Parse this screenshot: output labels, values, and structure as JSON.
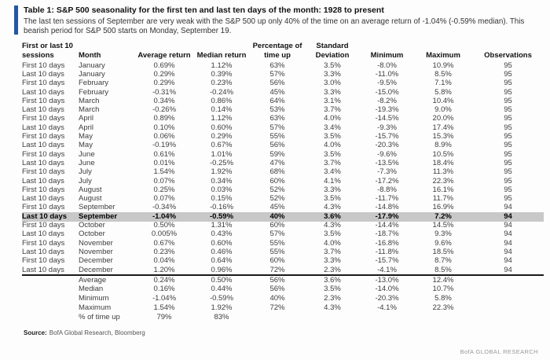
{
  "header": {
    "title": "Table 1: S&P 500 seasonality for the first ten and last ten days of the month: 1928 to present",
    "subtitle": "The last ten sessions of September are very weak with the S&P 500 up only 40% of the time on an average return of -1.04% (-0.59% median). This bearish period for S&P 500 starts on Monday, September 19.",
    "accent_color": "#2257a9"
  },
  "table": {
    "headers": [
      {
        "top": "First or last 10",
        "bottom": "sessions"
      },
      {
        "top": "",
        "bottom": "Month"
      },
      {
        "top": "",
        "bottom": "Average return"
      },
      {
        "top": "",
        "bottom": "Median return"
      },
      {
        "top": "Percentage of",
        "bottom": "time up"
      },
      {
        "top": "Standard",
        "bottom": "Deviation"
      },
      {
        "top": "",
        "bottom": "Minimum"
      },
      {
        "top": "",
        "bottom": "Maximum"
      },
      {
        "top": "",
        "bottom": "Observations"
      }
    ],
    "highlight_row_index": 17,
    "highlight_color": "#c8c8c8",
    "rows": [
      [
        "First 10 days",
        "January",
        "0.69%",
        "1.12%",
        "63%",
        "3.5%",
        "-8.0%",
        "10.9%",
        "95"
      ],
      [
        "Last 10 days",
        "January",
        "0.29%",
        "0.39%",
        "57%",
        "3.3%",
        "-11.0%",
        "8.5%",
        "95"
      ],
      [
        "First 10 days",
        "February",
        "0.29%",
        "0.23%",
        "56%",
        "3.0%",
        "-9.5%",
        "7.1%",
        "95"
      ],
      [
        "Last 10 days",
        "February",
        "-0.31%",
        "-0.24%",
        "45%",
        "3.3%",
        "-15.0%",
        "5.8%",
        "95"
      ],
      [
        "First 10 days",
        "March",
        "0.34%",
        "0.86%",
        "64%",
        "3.1%",
        "-8.2%",
        "10.4%",
        "95"
      ],
      [
        "Last 10 days",
        "March",
        "-0.26%",
        "0.14%",
        "53%",
        "3.7%",
        "-19.3%",
        "9.0%",
        "95"
      ],
      [
        "First 10 days",
        "April",
        "0.89%",
        "1.12%",
        "63%",
        "4.0%",
        "-14.5%",
        "20.0%",
        "95"
      ],
      [
        "Last 10 days",
        "April",
        "0.10%",
        "0.60%",
        "57%",
        "3.4%",
        "-9.3%",
        "17.4%",
        "95"
      ],
      [
        "First 10 days",
        "May",
        "0.06%",
        "0.29%",
        "55%",
        "3.5%",
        "-15.7%",
        "15.3%",
        "95"
      ],
      [
        "Last 10 days",
        "May",
        "-0.19%",
        "0.67%",
        "56%",
        "4.0%",
        "-20.3%",
        "8.9%",
        "95"
      ],
      [
        "First 10 days",
        "June",
        "0.61%",
        "1.01%",
        "59%",
        "3.5%",
        "-9.6%",
        "10.5%",
        "95"
      ],
      [
        "Last 10 days",
        "June",
        "0.01%",
        "-0.25%",
        "47%",
        "3.7%",
        "-13.5%",
        "18.4%",
        "95"
      ],
      [
        "First 10 days",
        "July",
        "1.54%",
        "1.92%",
        "68%",
        "3.4%",
        "-7.3%",
        "11.3%",
        "95"
      ],
      [
        "Last 10 days",
        "July",
        "0.07%",
        "0.34%",
        "60%",
        "4.1%",
        "-17.2%",
        "22.3%",
        "95"
      ],
      [
        "First 10 days",
        "August",
        "0.25%",
        "0.03%",
        "52%",
        "3.3%",
        "-8.8%",
        "16.1%",
        "95"
      ],
      [
        "Last 10 days",
        "August",
        "0.07%",
        "0.15%",
        "52%",
        "3.5%",
        "-11.7%",
        "11.7%",
        "95"
      ],
      [
        "First 10 days",
        "September",
        "-0.34%",
        "-0.16%",
        "45%",
        "4.3%",
        "-14.8%",
        "16.9%",
        "94"
      ],
      [
        "Last 10 days",
        "September",
        "-1.04%",
        "-0.59%",
        "40%",
        "3.6%",
        "-17.9%",
        "7.2%",
        "94"
      ],
      [
        "First 10 days",
        "October",
        "0.50%",
        "1.31%",
        "60%",
        "4.3%",
        "-14.4%",
        "14.5%",
        "94"
      ],
      [
        "Last 10 days",
        "October",
        "0.005%",
        "0.43%",
        "57%",
        "3.5%",
        "-18.7%",
        "9.3%",
        "94"
      ],
      [
        "First 10 days",
        "November",
        "0.67%",
        "0.60%",
        "55%",
        "4.0%",
        "-16.8%",
        "9.6%",
        "94"
      ],
      [
        "Last 10 days",
        "November",
        "0.23%",
        "0.46%",
        "55%",
        "3.7%",
        "-11.8%",
        "18.5%",
        "94"
      ],
      [
        "First 10 days",
        "December",
        "0.04%",
        "0.64%",
        "60%",
        "3.3%",
        "-15.7%",
        "8.7%",
        "94"
      ],
      [
        "Last 10 days",
        "December",
        "1.20%",
        "0.96%",
        "72%",
        "2.3%",
        "-4.1%",
        "8.5%",
        "94"
      ]
    ],
    "summary_rows": [
      [
        "",
        "Average",
        "0.24%",
        "0.50%",
        "56%",
        "3.6%",
        "-13.0%",
        "12.4%",
        ""
      ],
      [
        "",
        "Median",
        "0.16%",
        "0.44%",
        "56%",
        "3.5%",
        "-14.0%",
        "10.7%",
        ""
      ],
      [
        "",
        "Minimum",
        "-1.04%",
        "-0.59%",
        "40%",
        "2.3%",
        "-20.3%",
        "5.8%",
        ""
      ],
      [
        "",
        "Maximum",
        "1.54%",
        "1.92%",
        "72%",
        "4.3%",
        "-4.1%",
        "22.3%",
        ""
      ],
      [
        "",
        "% of time up",
        "79%",
        "83%",
        "",
        "",
        "",
        "",
        ""
      ]
    ]
  },
  "footer": {
    "source_label": "Source:",
    "source_text": "BofA Global Research, Bloomberg",
    "brand": "BofA GLOBAL RESEARCH"
  }
}
